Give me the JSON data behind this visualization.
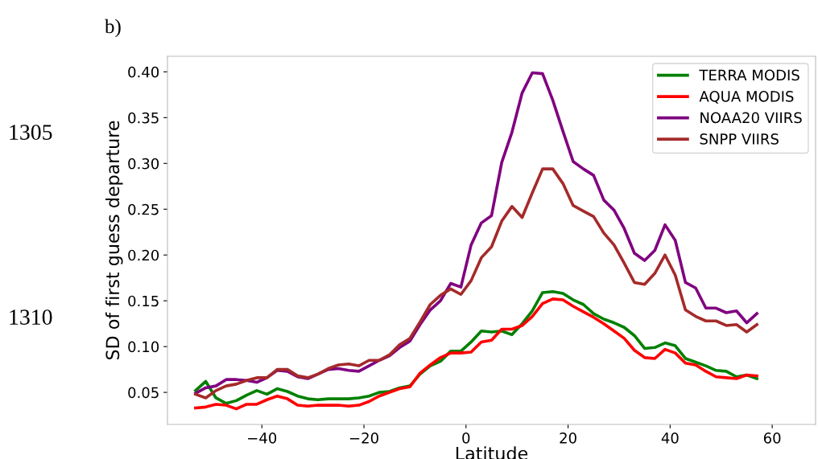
{
  "chart_data": {
    "type": "line",
    "xlabel": "Latitude",
    "ylabel": "SD of first guess departure",
    "annotations": [
      "b)",
      "1305",
      "1310"
    ],
    "x": [
      -53,
      -51,
      -49,
      -47,
      -45,
      -43,
      -41,
      -39,
      -37,
      -35,
      -33,
      -31,
      -29,
      -27,
      -25,
      -23,
      -21,
      -19,
      -17,
      -15,
      -13,
      -11,
      -9,
      -7,
      -5,
      -3,
      -1,
      1,
      3,
      5,
      7,
      9,
      11,
      13,
      15,
      17,
      19,
      21,
      23,
      25,
      27,
      29,
      31,
      33,
      35,
      37,
      39,
      41,
      43,
      45,
      47,
      49,
      51,
      53,
      55,
      57
    ],
    "series": [
      {
        "name": "TERRA MODIS",
        "color": "#008000",
        "values": [
          0.052,
          0.062,
          0.044,
          0.038,
          0.041,
          0.047,
          0.052,
          0.048,
          0.054,
          0.051,
          0.046,
          0.043,
          0.042,
          0.043,
          0.043,
          0.043,
          0.044,
          0.046,
          0.05,
          0.051,
          0.055,
          0.057,
          0.07,
          0.079,
          0.084,
          0.095,
          0.095,
          0.105,
          0.117,
          0.116,
          0.117,
          0.113,
          0.125,
          0.139,
          0.159,
          0.16,
          0.158,
          0.151,
          0.146,
          0.136,
          0.13,
          0.126,
          0.121,
          0.112,
          0.098,
          0.099,
          0.104,
          0.101,
          0.087,
          0.083,
          0.079,
          0.074,
          0.073,
          0.067,
          0.069,
          0.065
        ]
      },
      {
        "name": "AQUA MODIS",
        "color": "#ff0000",
        "values": [
          0.033,
          0.034,
          0.037,
          0.036,
          0.032,
          0.037,
          0.037,
          0.042,
          0.046,
          0.043,
          0.036,
          0.035,
          0.036,
          0.036,
          0.036,
          0.035,
          0.036,
          0.04,
          0.046,
          0.05,
          0.054,
          0.056,
          0.071,
          0.08,
          0.088,
          0.093,
          0.093,
          0.094,
          0.105,
          0.107,
          0.119,
          0.119,
          0.123,
          0.133,
          0.147,
          0.152,
          0.151,
          0.144,
          0.138,
          0.132,
          0.125,
          0.117,
          0.109,
          0.096,
          0.088,
          0.087,
          0.097,
          0.093,
          0.082,
          0.08,
          0.073,
          0.067,
          0.066,
          0.065,
          0.069,
          0.068
        ]
      },
      {
        "name": "NOAA20 VIIRS",
        "color": "#800080",
        "values": [
          0.049,
          0.055,
          0.057,
          0.064,
          0.064,
          0.063,
          0.061,
          0.066,
          0.074,
          0.073,
          0.067,
          0.065,
          0.07,
          0.075,
          0.076,
          0.074,
          0.073,
          0.079,
          0.085,
          0.09,
          0.099,
          0.106,
          0.124,
          0.14,
          0.15,
          0.169,
          0.165,
          0.211,
          0.235,
          0.243,
          0.301,
          0.334,
          0.377,
          0.399,
          0.398,
          0.369,
          0.335,
          0.302,
          0.294,
          0.287,
          0.26,
          0.249,
          0.229,
          0.202,
          0.194,
          0.205,
          0.233,
          0.216,
          0.17,
          0.164,
          0.142,
          0.142,
          0.137,
          0.139,
          0.126,
          0.136
        ]
      },
      {
        "name": "SNPP VIIRS",
        "color": "#a52a2a",
        "values": [
          0.048,
          0.044,
          0.052,
          0.057,
          0.059,
          0.063,
          0.066,
          0.066,
          0.075,
          0.075,
          0.068,
          0.066,
          0.07,
          0.076,
          0.08,
          0.081,
          0.079,
          0.085,
          0.085,
          0.091,
          0.102,
          0.109,
          0.127,
          0.146,
          0.156,
          0.163,
          0.157,
          0.172,
          0.197,
          0.209,
          0.237,
          0.253,
          0.241,
          0.268,
          0.294,
          0.294,
          0.278,
          0.254,
          0.248,
          0.242,
          0.224,
          0.211,
          0.191,
          0.17,
          0.168,
          0.18,
          0.2,
          0.178,
          0.14,
          0.133,
          0.128,
          0.128,
          0.123,
          0.124,
          0.116,
          0.124
        ]
      }
    ],
    "xlim": [
      -58.5,
      68.5
    ],
    "xticks": [
      {
        "value": -40,
        "label": "−40"
      },
      {
        "value": -20,
        "label": "−20"
      },
      0,
      20,
      40,
      60
    ],
    "ylim": [
      0.015,
      0.417
    ],
    "yticks": [
      {
        "value": 0.05,
        "label": "0.05"
      },
      {
        "value": 0.1,
        "label": "0.10"
      },
      {
        "value": 0.15,
        "label": "0.15"
      },
      {
        "value": 0.2,
        "label": "0.20"
      },
      {
        "value": 0.25,
        "label": "0.25"
      },
      {
        "value": 0.3,
        "label": "0.30"
      },
      {
        "value": 0.35,
        "label": "0.35"
      },
      {
        "value": 0.4,
        "label": "0.40"
      }
    ],
    "grid": false,
    "legend": "top right",
    "line_style": "solid",
    "marker": "none"
  }
}
